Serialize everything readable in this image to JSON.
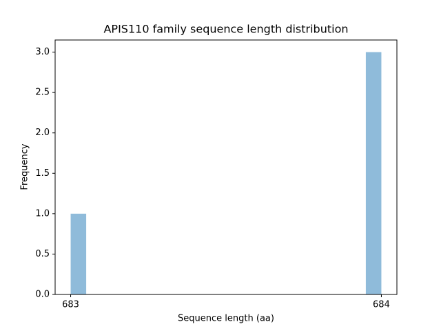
{
  "chart_data": {
    "type": "histogram",
    "title": "APIS110 family sequence length distribution",
    "xlabel": "Sequence length (aa)",
    "ylabel": "Frequency",
    "bins": [
      683,
      683.05,
      683.1,
      683.15,
      683.2,
      683.25,
      683.3,
      683.35,
      683.4,
      683.45,
      683.5,
      683.55,
      683.6,
      683.65,
      683.7,
      683.75,
      683.8,
      683.85,
      683.9,
      683.95,
      684
    ],
    "counts": [
      1,
      0,
      0,
      0,
      0,
      0,
      0,
      0,
      0,
      0,
      0,
      0,
      0,
      0,
      0,
      0,
      0,
      0,
      0,
      3
    ],
    "color": "#8fbbda",
    "xlim": [
      682.95,
      684.05
    ],
    "xticks": [
      683,
      684
    ],
    "ylim": [
      0,
      3.15
    ],
    "yticks": [
      {
        "value": 0,
        "label": "0.0"
      },
      0.5,
      {
        "value": 1,
        "label": "1.0"
      },
      1.5,
      {
        "value": 2,
        "label": "2.0"
      },
      2.5,
      {
        "value": 3,
        "label": "3.0"
      }
    ]
  }
}
